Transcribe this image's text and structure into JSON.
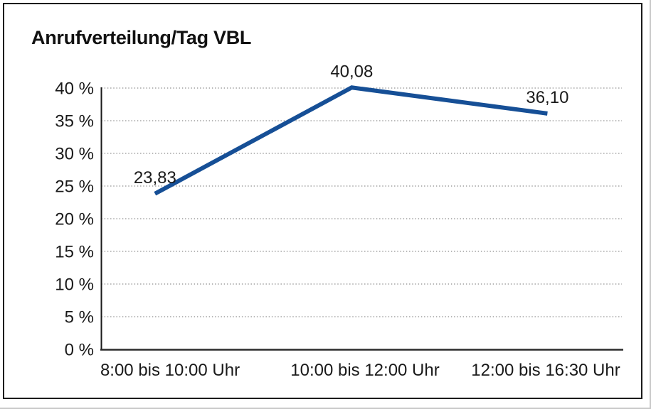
{
  "window": {
    "background_color": "#ffffff",
    "frame_border_color": "#1a1a1a"
  },
  "chart_data": {
    "type": "line",
    "title": "Anrufverteilung/Tag VBL",
    "categories": [
      "8:00 bis 10:00 Uhr",
      "10:00 bis 12:00 Uhr",
      "12:00 bis 16:30 Uhr"
    ],
    "series": [
      {
        "values": [
          23.83,
          40.08,
          36.1
        ],
        "point_labels": [
          "23,83",
          "40,08",
          "36,10"
        ],
        "color": "#164f96"
      }
    ],
    "xlabel": "",
    "ylabel": "",
    "ylim": [
      0,
      40
    ],
    "ytick_values": [
      0,
      5,
      10,
      15,
      20,
      25,
      30,
      35,
      40
    ],
    "ytick_labels": [
      "0 %",
      "5 %",
      "10 %",
      "15 %",
      "20 %",
      "25 %",
      "30 %",
      "35 %",
      "40 %"
    ],
    "grid": "horizontal-dotted",
    "legend_position": "none",
    "text_color": "#1a1a1a",
    "gridline_color": "#8a8a8a",
    "axis_line_color": "#2b2b2b"
  }
}
